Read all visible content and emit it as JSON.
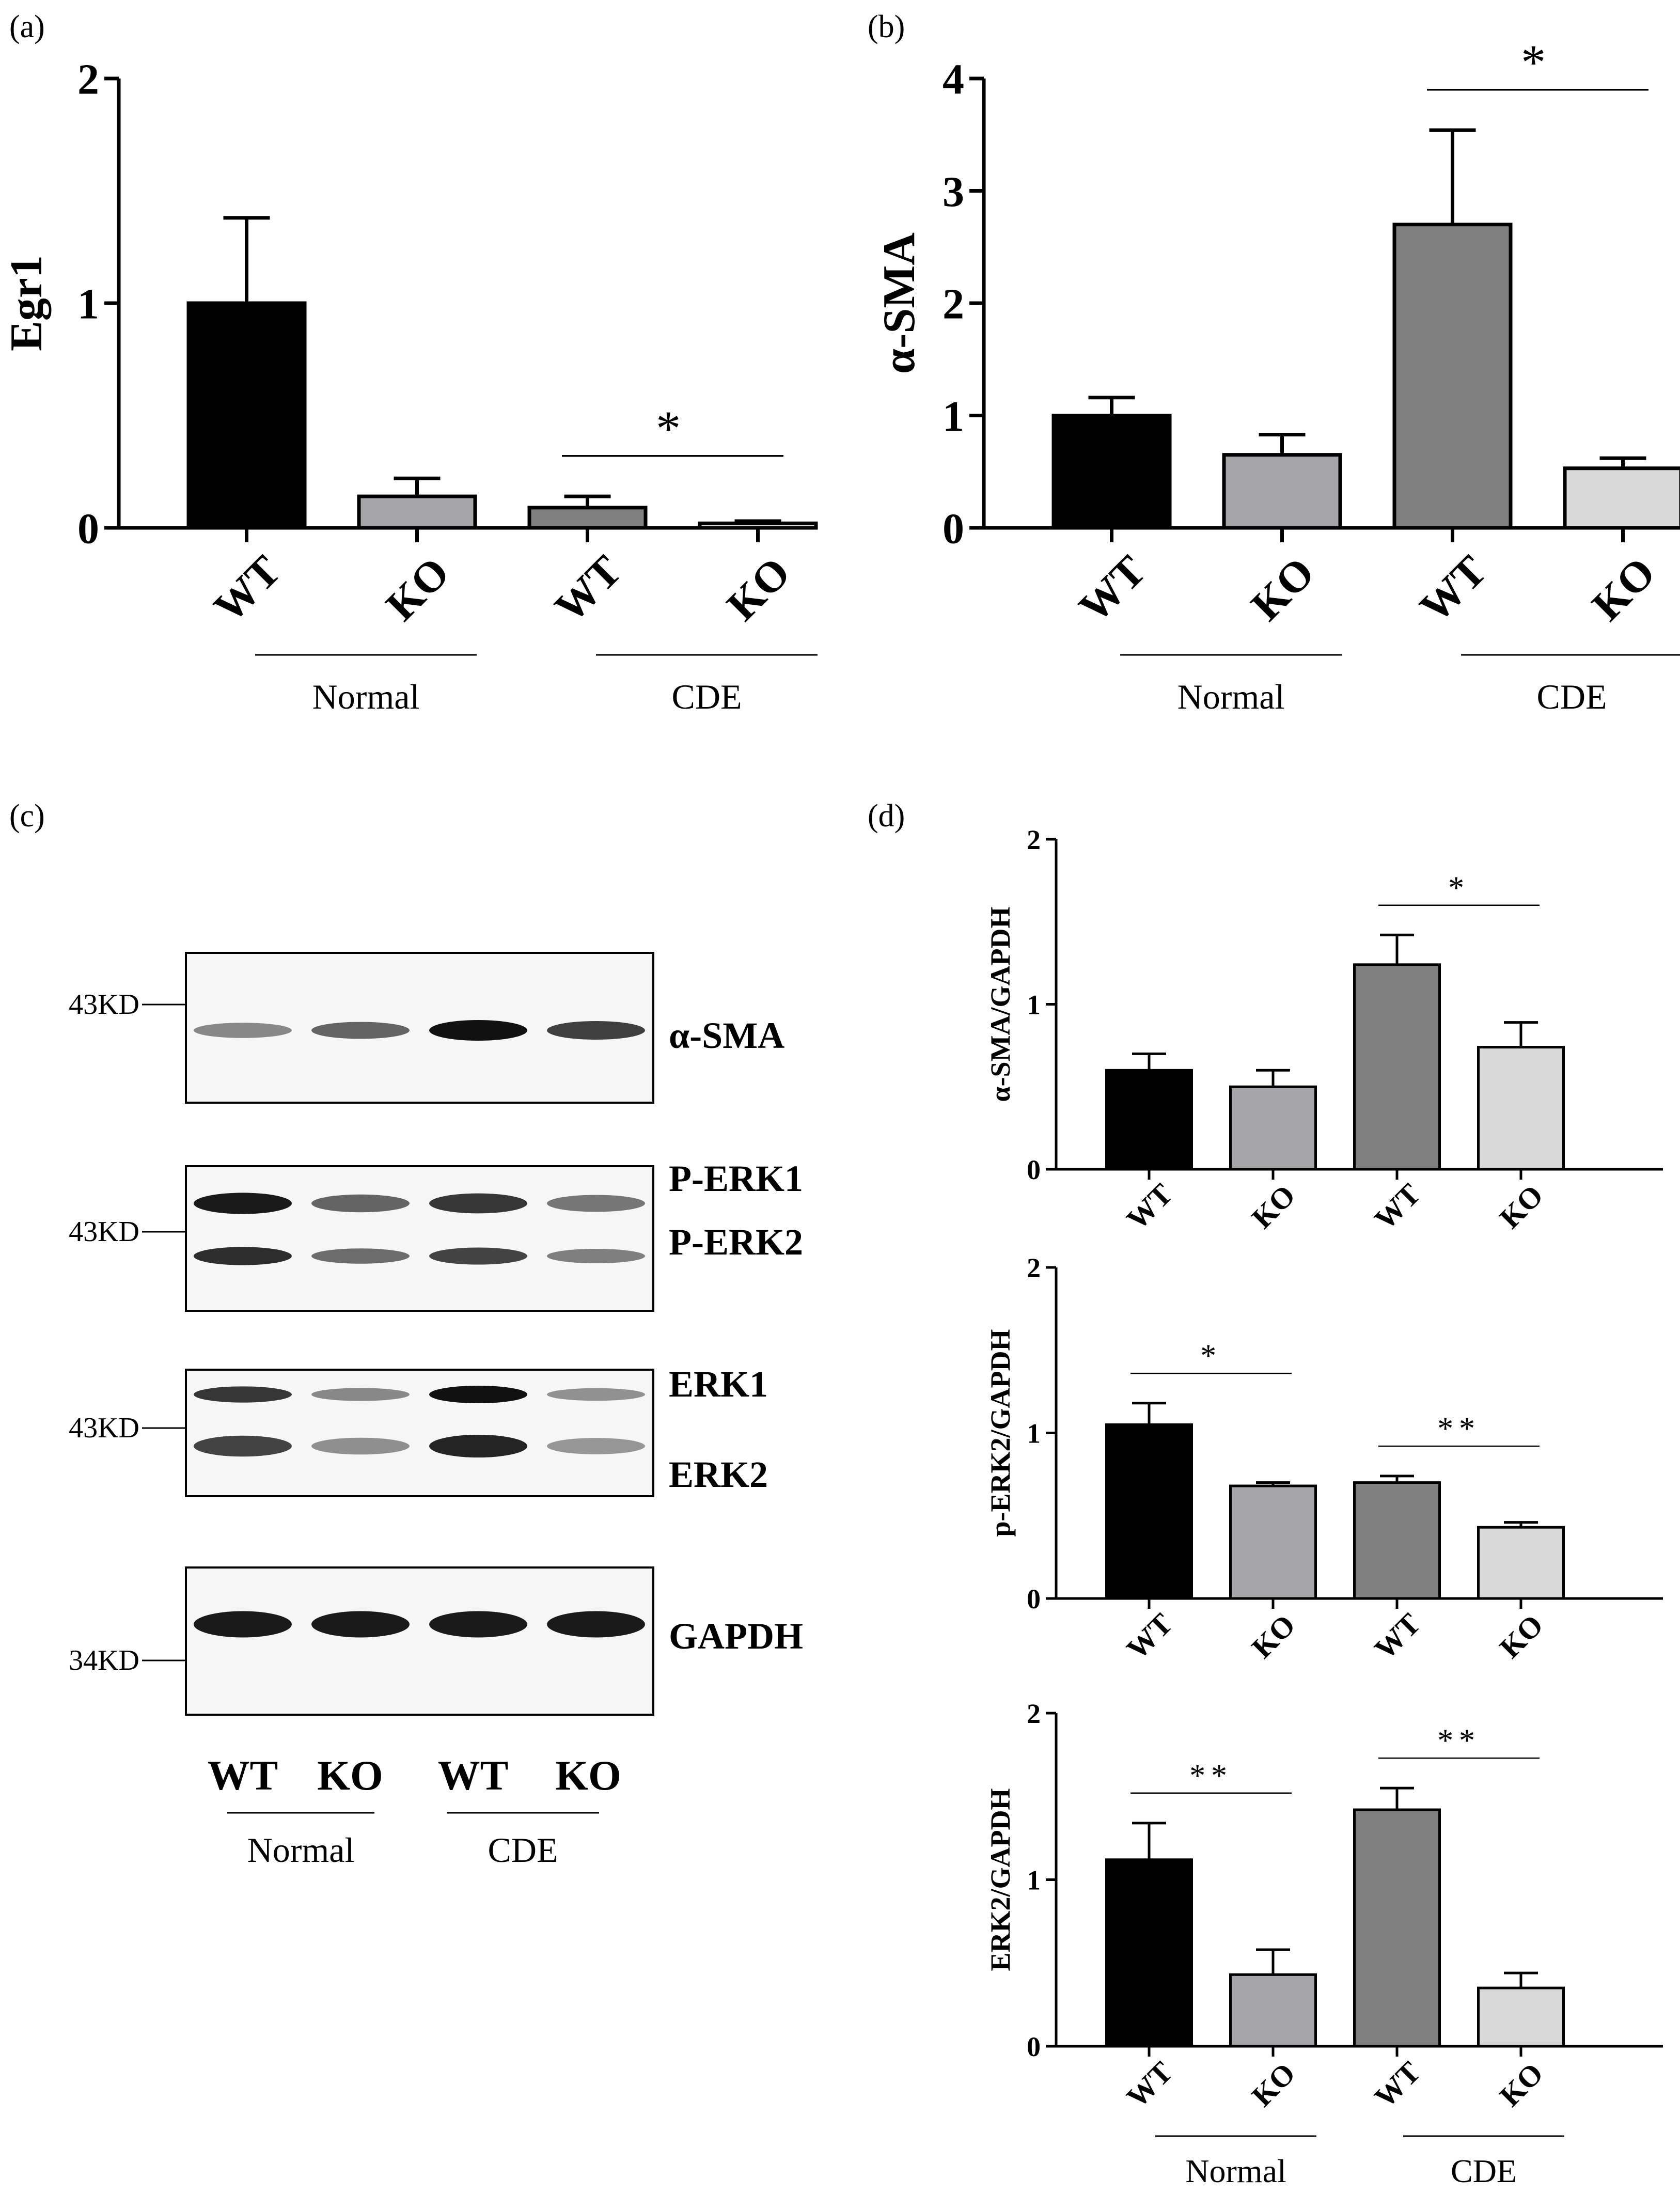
{
  "panels": {
    "a": "(a)",
    "b": "(b)",
    "c": "(c)",
    "d": "(d)"
  },
  "colors": {
    "wt_normal": "#000000",
    "ko_normal": "#a6a6aa",
    "wt_cde": "#808080",
    "ko_cde": "#d8d8d8"
  },
  "chart_data": [
    {
      "id": "a",
      "type": "bar",
      "title": "",
      "ylabel": "Egr1",
      "ylim": [
        0,
        2
      ],
      "yticks": [
        "0",
        "1",
        "2"
      ],
      "categories": [
        "WT",
        "KO",
        "WT",
        "KO"
      ],
      "groups": [
        {
          "name": "Normal",
          "span": [
            0,
            1
          ]
        },
        {
          "name": "CDE",
          "span": [
            2,
            3
          ]
        }
      ],
      "values": [
        1.0,
        0.14,
        0.09,
        0.02
      ],
      "errors": [
        0.38,
        0.08,
        0.05,
        0.01
      ],
      "significance": [
        {
          "from": 2,
          "to": 3,
          "label": "*"
        }
      ]
    },
    {
      "id": "b",
      "type": "bar",
      "title": "",
      "ylabel": "α-SMA",
      "ylim": [
        0,
        4
      ],
      "yticks": [
        "0",
        "1",
        "2",
        "3",
        "4"
      ],
      "categories": [
        "WT",
        "KO",
        "WT",
        "KO"
      ],
      "groups": [
        {
          "name": "Normal",
          "span": [
            0,
            1
          ]
        },
        {
          "name": "CDE",
          "span": [
            2,
            3
          ]
        }
      ],
      "values": [
        1.0,
        0.65,
        2.7,
        0.53
      ],
      "errors": [
        0.16,
        0.18,
        0.84,
        0.09
      ],
      "significance": [
        {
          "from": 2,
          "to": 3,
          "label": "*"
        }
      ]
    },
    {
      "id": "d1",
      "type": "bar",
      "title": "",
      "ylabel": "α-SMA/GAPDH",
      "ylim": [
        0,
        2
      ],
      "yticks": [
        "0",
        "1",
        "2"
      ],
      "categories": [
        "WT",
        "KO",
        "WT",
        "KO"
      ],
      "values": [
        0.6,
        0.5,
        1.24,
        0.74
      ],
      "errors": [
        0.1,
        0.1,
        0.18,
        0.15
      ],
      "significance": [
        {
          "from": 2,
          "to": 3,
          "label": "*"
        }
      ]
    },
    {
      "id": "d2",
      "type": "bar",
      "title": "",
      "ylabel": "p-ERK2/GAPDH",
      "ylim": [
        0,
        2
      ],
      "yticks": [
        "0",
        "1",
        "2"
      ],
      "categories": [
        "WT",
        "KO",
        "WT",
        "KO"
      ],
      "values": [
        1.05,
        0.68,
        0.7,
        0.43
      ],
      "errors": [
        0.13,
        0.02,
        0.04,
        0.03
      ],
      "significance": [
        {
          "from": 0,
          "to": 1,
          "label": "*"
        },
        {
          "from": 2,
          "to": 3,
          "label": "**"
        }
      ]
    },
    {
      "id": "d3",
      "type": "bar",
      "title": "",
      "ylabel": "ERK2/GAPDH",
      "ylim": [
        0,
        2
      ],
      "yticks": [
        "0",
        "1",
        "2"
      ],
      "categories": [
        "WT",
        "KO",
        "WT",
        "KO"
      ],
      "groups": [
        {
          "name": "Normal",
          "span": [
            0,
            1
          ]
        },
        {
          "name": "CDE",
          "span": [
            2,
            3
          ]
        }
      ],
      "values": [
        1.12,
        0.43,
        1.42,
        0.35
      ],
      "errors": [
        0.22,
        0.15,
        0.13,
        0.09
      ],
      "significance": [
        {
          "from": 0,
          "to": 1,
          "label": "**"
        },
        {
          "from": 2,
          "to": 3,
          "label": "**"
        }
      ]
    }
  ],
  "western_blot": {
    "blots": [
      {
        "name": "α-SMA",
        "kd": "43KD",
        "labels": [
          "α-SMA"
        ],
        "intensity": [
          0.35,
          0.55,
          1.0,
          0.75
        ]
      },
      {
        "name": "P-ERK",
        "kd": "43KD",
        "labels": [
          "P-ERK1",
          "P-ERK2"
        ],
        "intensity": [
          0.95,
          0.55,
          0.8,
          0.45
        ]
      },
      {
        "name": "ERK",
        "kd": "43KD",
        "labels": [
          "ERK1",
          "ERK2"
        ],
        "intensity": [
          0.8,
          0.35,
          1.0,
          0.3
        ]
      },
      {
        "name": "GAPDH",
        "kd": "34KD",
        "labels": [
          "GAPDH"
        ],
        "intensity": [
          0.95,
          0.95,
          0.95,
          0.95
        ]
      }
    ],
    "lanes": [
      "WT",
      "KO",
      "WT",
      "KO"
    ],
    "groups": [
      "Normal",
      "CDE"
    ]
  }
}
